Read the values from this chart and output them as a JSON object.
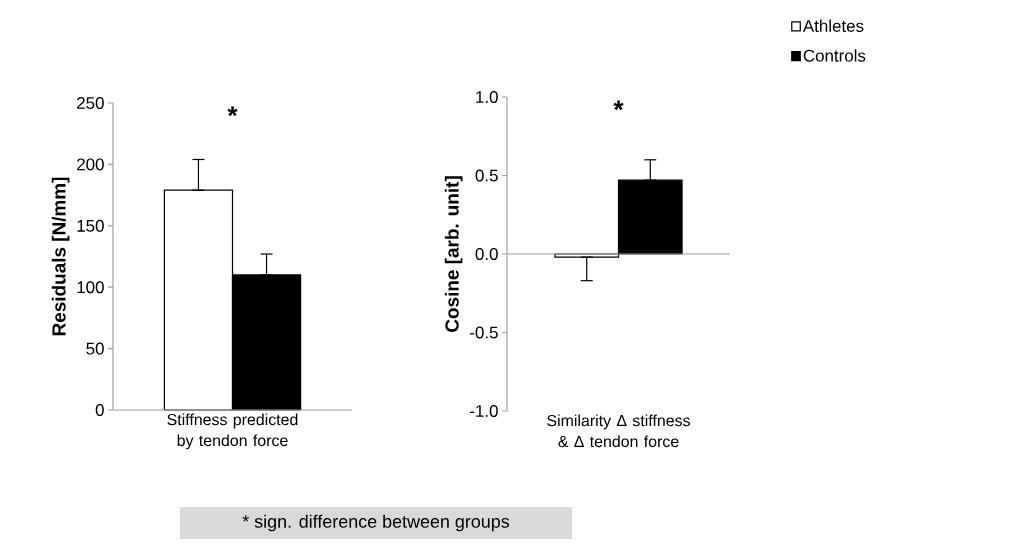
{
  "chart_data": [
    {
      "type": "bar",
      "ylabel": "Residuals [N/mm]",
      "categories": [
        "Stiffness predicted by tendon force"
      ],
      "series": [
        {
          "color": "#ffffff",
          "values": [
            179
          ],
          "errors": [
            [
              179,
              204
            ]
          ]
        },
        {
          "color": "#000000",
          "values": [
            110
          ],
          "errors": [
            [
              110,
              127
            ]
          ]
        }
      ],
      "ylim": [
        0,
        250
      ],
      "yticks": [
        0,
        50,
        100,
        150,
        200,
        250
      ],
      "annotations": [
        "*",
        "* sign. difference between groups"
      ]
    },
    {
      "type": "bar",
      "ylabel": "Cosine [arb. unit]",
      "categories": [
        "Similarity Δ stiffness & Δ tendon force"
      ],
      "series": [
        {
          "name": "Athletes",
          "color": "#ffffff",
          "values": [
            -0.02
          ],
          "errors": [
            [
              -0.17,
              -0.02
            ]
          ]
        },
        {
          "name": "Controls",
          "color": "#000000",
          "values": [
            0.47
          ],
          "errors": [
            [
              0.47,
              0.6
            ]
          ]
        }
      ],
      "ylim": [
        -1,
        1
      ],
      "yticks": [
        {
          "value": -1,
          "label": "-1.0"
        },
        {
          "value": -0.5,
          "label": "-0.5"
        },
        {
          "value": 0,
          "label": "0.0"
        },
        {
          "value": 0.5,
          "label": "0.5"
        },
        {
          "value": 1,
          "label": "1.0"
        }
      ],
      "legend": "top right",
      "annotations": [
        "*"
      ]
    }
  ]
}
